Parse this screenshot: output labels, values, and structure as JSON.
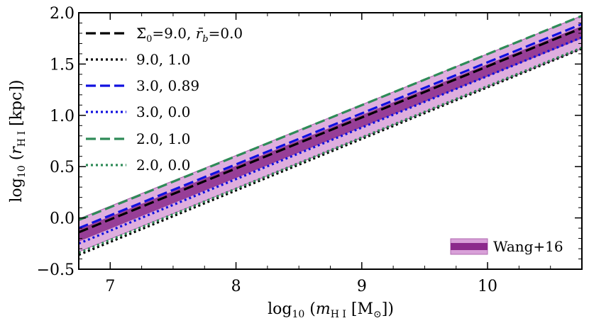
{
  "chart_data": {
    "type": "line",
    "xlabel": "log10(mHI [M☉])",
    "ylabel": "log10(rHI [kpc])",
    "xlim": [
      6.75,
      10.75
    ],
    "ylim": [
      -0.5,
      2.0
    ],
    "xticks": [
      "7",
      "8",
      "9",
      "10"
    ],
    "yticks": [
      "−0.5",
      "0.0",
      "0.5",
      "1.0",
      "1.5",
      "2.0"
    ],
    "grid": false,
    "legend_position": "top-left",
    "band": {
      "name": "Wang+16",
      "legend_position": "bottom-right",
      "line_color": "#7b1f7b",
      "inner_color": "#8b2a8b",
      "outer_color": "#d8a0d8",
      "center_x": [
        6.75,
        10.75
      ],
      "center_y": [
        -0.17,
        1.81
      ],
      "inner_halfwidth": 0.06,
      "outer_halfwidth": 0.16
    },
    "series": [
      {
        "name": "Σ̄0=9.0, r̄b=0.0",
        "color": "#000000",
        "dash": "dashed",
        "x": [
          6.75,
          10.75
        ],
        "y": [
          -0.14,
          1.85
        ]
      },
      {
        "name": "9.0, 1.0",
        "color": "#000000",
        "dash": "dotted",
        "x": [
          6.75,
          10.75
        ],
        "y": [
          -0.36,
          1.65
        ]
      },
      {
        "name": "3.0, 0.89",
        "color": "#1010e0",
        "dash": "dashed",
        "x": [
          6.75,
          10.75
        ],
        "y": [
          -0.1,
          1.89
        ]
      },
      {
        "name": "3.0, 0.0",
        "color": "#1010e0",
        "dash": "dotted",
        "x": [
          6.75,
          10.75
        ],
        "y": [
          -0.25,
          1.76
        ]
      },
      {
        "name": "2.0, 1.0",
        "color": "#2e8b57",
        "dash": "dashed",
        "x": [
          6.75,
          10.75
        ],
        "y": [
          -0.02,
          1.97
        ]
      },
      {
        "name": "2.0, 0.0",
        "color": "#2e8b57",
        "dash": "dotted",
        "x": [
          6.75,
          10.75
        ],
        "y": [
          -0.34,
          1.66
        ]
      }
    ]
  }
}
